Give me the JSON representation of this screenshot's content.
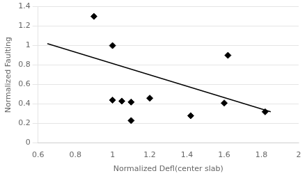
{
  "chart_data": {
    "type": "scatter",
    "xlabel": "Normalized Defl(center slab)",
    "ylabel": "Normalized Faulting",
    "series": [
      {
        "type": "scatter",
        "color": "black",
        "marker": "diamond",
        "x": [
          0.9,
          1.0,
          1.0,
          1.05,
          1.1,
          1.1,
          1.2,
          1.42,
          1.6,
          1.62,
          1.82
        ],
        "values": [
          1.3,
          1.0,
          0.44,
          0.43,
          0.23,
          0.42,
          0.46,
          0.28,
          0.41,
          0.9,
          0.32
        ]
      },
      {
        "type": "line",
        "color": "black",
        "x": [
          0.65,
          1.85
        ],
        "values": [
          1.02,
          0.32
        ]
      }
    ],
    "xlim": [
      0.6,
      2.0
    ],
    "ylim": [
      0.0,
      1.4
    ],
    "xticks": [
      0.6,
      0.8,
      1,
      1.2,
      1.4,
      1.6,
      1.8,
      2
    ],
    "yticks": [
      0,
      0.2,
      0.4,
      0.6,
      0.8,
      1,
      1.2,
      1.4
    ],
    "grid": "y"
  }
}
